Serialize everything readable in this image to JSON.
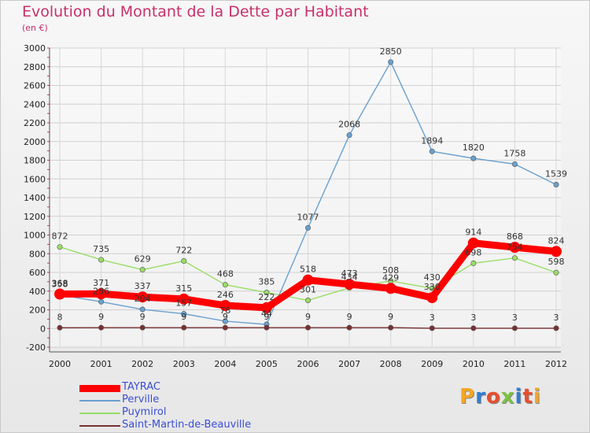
{
  "header": {
    "title": "Evolution du Montant de la Dette par Habitant",
    "subtitle": "(en €)"
  },
  "logo": {
    "text": "Proxiti",
    "colors": [
      "#f5a623",
      "#2f7fd1",
      "#e84e2e",
      "#7cc242",
      "#2f7fd1",
      "#e84e2e",
      "#f5a623"
    ]
  },
  "chart_data": {
    "type": "line",
    "title": "Evolution du Montant de la Dette par Habitant",
    "subtitle": "(en €)",
    "x": [
      "2000",
      "2001",
      "2002",
      "2003",
      "2004",
      "2005",
      "2006",
      "2007",
      "2008",
      "2009",
      "2010",
      "2011",
      "2012"
    ],
    "ylim": [
      -200,
      3000
    ],
    "yticks": [
      "-200",
      "0",
      "200",
      "400",
      "600",
      "800",
      "1000",
      "1200",
      "1400",
      "1600",
      "1800",
      "2000",
      "2200",
      "2400",
      "2600",
      "2800",
      "3000"
    ],
    "grid": true,
    "legend_position": "bottom-left",
    "series": [
      {
        "name": "TAYRAC",
        "color": "#ff0000",
        "values": [
          368,
          371,
          337,
          315,
          246,
          222,
          518,
          473,
          429,
          330,
          914,
          868,
          824
        ],
        "labels": [
          "368",
          "371",
          "337",
          "315",
          "246",
          "222",
          "518",
          "473",
          "429",
          "330",
          "914",
          "868",
          "824"
        ]
      },
      {
        "name": "Perville",
        "color": "#6aa0cf",
        "values": [
          358,
          286,
          204,
          157,
          78,
          44,
          1077,
          2068,
          2850,
          1894,
          1820,
          1758,
          1539
        ],
        "labels": [
          "358",
          "286",
          "204",
          "157",
          "78",
          "44",
          "1077",
          "2068",
          "2850",
          "1894",
          "1820",
          "1758",
          "1539"
        ]
      },
      {
        "name": "Puymirol",
        "color": "#99dd66",
        "values": [
          872,
          735,
          629,
          722,
          468,
          385,
          301,
          434,
          508,
          430,
          698,
          754,
          598
        ],
        "labels": [
          "872",
          "735",
          "629",
          "722",
          "468",
          "385",
          "301",
          "434",
          "508",
          "430",
          "698",
          "754",
          "598"
        ]
      },
      {
        "name": "Saint-Martin-de-Beauville",
        "color": "#7a3030",
        "values": [
          8,
          9,
          9,
          9,
          9,
          9,
          9,
          9,
          9,
          3,
          3,
          3,
          3
        ],
        "labels": [
          "8",
          "9",
          "9",
          "9",
          "9",
          "9",
          "9",
          "9",
          "9",
          "3",
          "3",
          "3",
          "3"
        ]
      }
    ]
  }
}
